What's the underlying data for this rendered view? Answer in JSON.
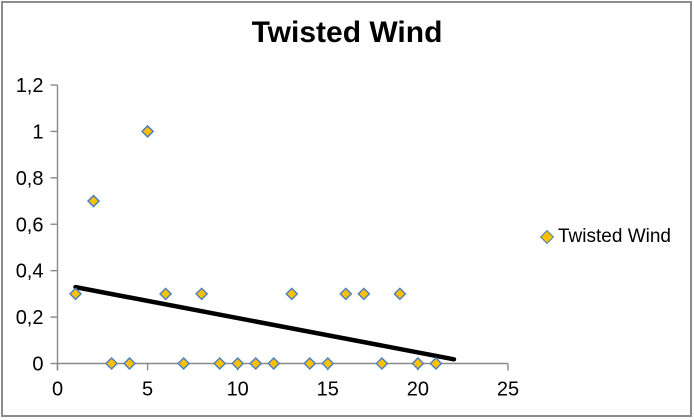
{
  "chart": {
    "legend": {
      "label": "Twisted Wind"
    }
  },
  "chart_data": {
    "type": "scatter",
    "title": "Twisted Wind",
    "series": [
      {
        "name": "Twisted Wind",
        "x": [
          1,
          2,
          3,
          4,
          5,
          6,
          7,
          8,
          9,
          10,
          11,
          12,
          13,
          14,
          15,
          16,
          17,
          18,
          19,
          20,
          21
        ],
        "y": [
          0.3,
          0.7,
          0,
          0,
          1,
          0.3,
          0,
          0.3,
          0,
          0,
          0,
          0,
          0.3,
          0,
          0,
          0.3,
          0.3,
          0,
          0.3,
          0,
          0
        ],
        "marker": {
          "shape": "diamond",
          "fill": "#FFC000",
          "stroke": "#4F81BD"
        }
      }
    ],
    "trendline": {
      "type": "linear",
      "slope": -0.0148,
      "intercept": 0.3438,
      "x_start": 1,
      "x_end": 22,
      "color": "#000000",
      "width": 4.5
    },
    "xlim": [
      0,
      25
    ],
    "ylim": [
      0,
      1.2
    ],
    "x_ticks": [
      0,
      5,
      10,
      15,
      20,
      25
    ],
    "x_tick_labels": [
      "0",
      "5",
      "10",
      "15",
      "20",
      "25"
    ],
    "y_ticks": [
      0,
      0.2,
      0.4,
      0.6,
      0.8,
      1.0,
      1.2
    ],
    "y_tick_labels": [
      "0",
      "0,2",
      "0,4",
      "0,6",
      "0,8",
      "1",
      "1,2"
    ],
    "grid": false,
    "legend_position": "right",
    "axis_color": "#898989",
    "text_color": "#000000"
  }
}
